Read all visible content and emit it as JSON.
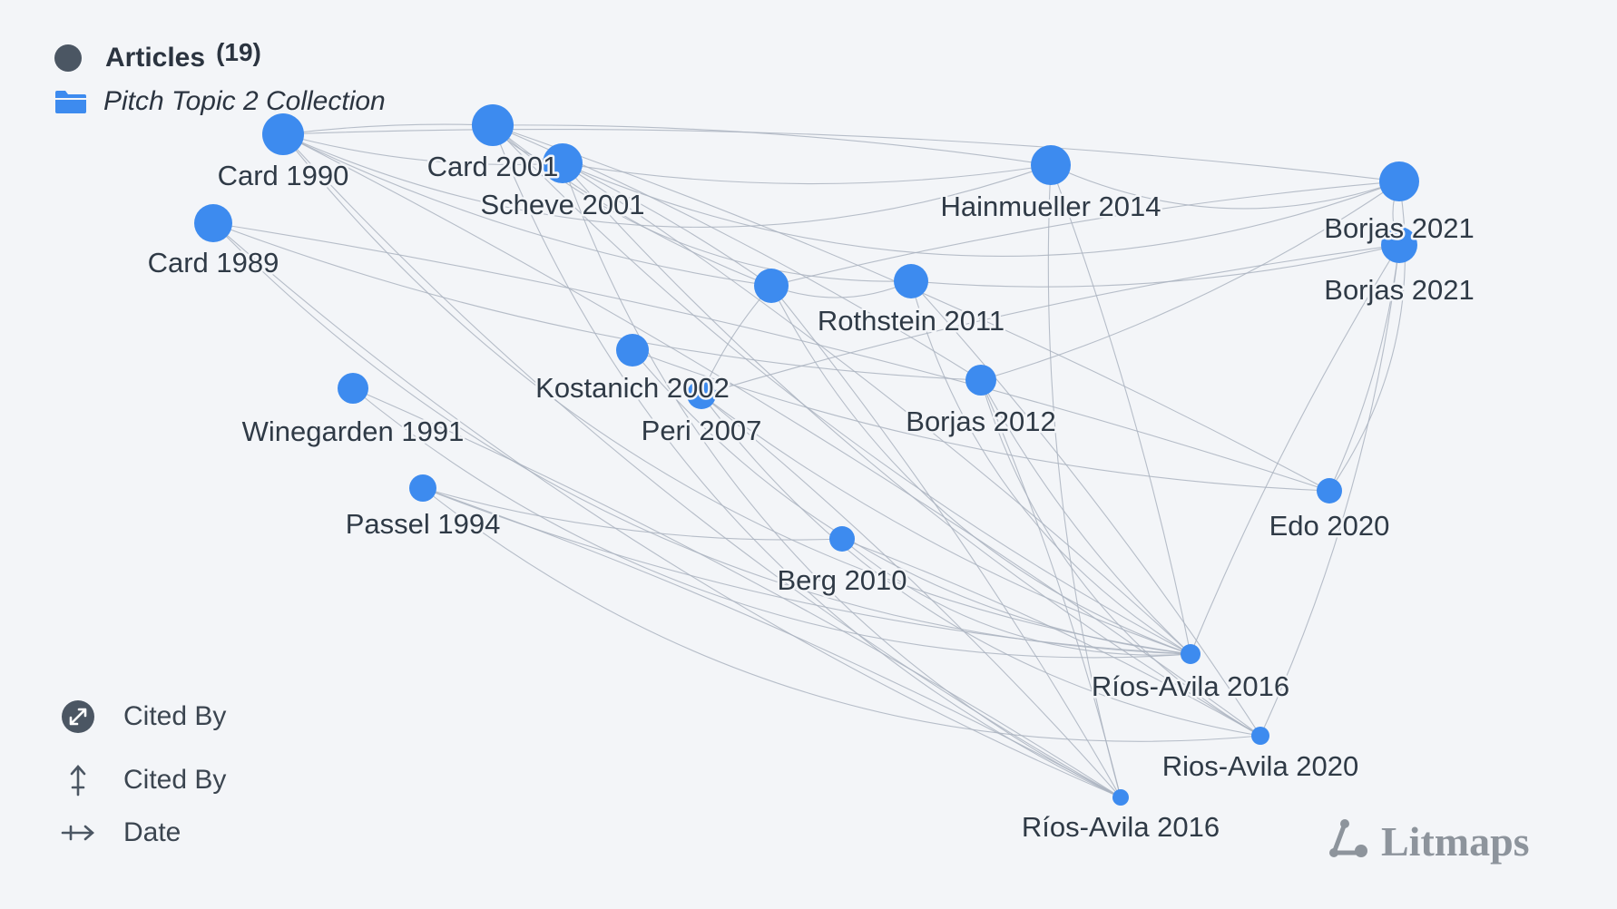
{
  "legend": {
    "articles_label": "Articles",
    "articles_count": "(19)",
    "collection_label": "Pitch Topic 2 Collection",
    "controls": [
      {
        "icon": "expand-arrows-icon",
        "label": "Cited By"
      },
      {
        "icon": "vertical-axis-icon",
        "label": "Cited By"
      },
      {
        "icon": "horizontal-axis-icon",
        "label": "Date"
      }
    ]
  },
  "brand": {
    "name": "Litmaps",
    "icon": "litmaps-logo-icon"
  },
  "colors": {
    "node": "#3d8bef",
    "edge": "#aab3c0",
    "background": "#f3f5f8",
    "text": "#2f3a46"
  },
  "nodes": [
    {
      "id": "card1990",
      "label": "Card 1990"
    },
    {
      "id": "card2001",
      "label": "Card 2001"
    },
    {
      "id": "scheve2001",
      "label": "Scheve 2001"
    },
    {
      "id": "card1989",
      "label": "Card 1989"
    },
    {
      "id": "hainmueller2014",
      "label": "Hainmueller 2014"
    },
    {
      "id": "borjas2021a",
      "label": "Borjas 2021"
    },
    {
      "id": "borjas2021b",
      "label": "Borjas 2021"
    },
    {
      "id": "unlabeled",
      "label": ""
    },
    {
      "id": "rothstein2011",
      "label": "Rothstein 2011"
    },
    {
      "id": "kostanich2002",
      "label": "Kostanich 2002"
    },
    {
      "id": "peri2007",
      "label": "Peri 2007"
    },
    {
      "id": "borjas2012",
      "label": "Borjas 2012"
    },
    {
      "id": "winegarden1991",
      "label": "Winegarden 1991"
    },
    {
      "id": "passel1994",
      "label": "Passel 1994"
    },
    {
      "id": "berg2010",
      "label": "Berg 2010"
    },
    {
      "id": "edo2020",
      "label": "Edo 2020"
    },
    {
      "id": "riosavila2016a",
      "label": "Ríos-Avila 2016"
    },
    {
      "id": "riosavila2020",
      "label": "Rios-Avila 2020"
    },
    {
      "id": "riosavila2016b",
      "label": "Ríos-Avila 2016"
    }
  ],
  "edges": [
    [
      "card1990",
      "card2001"
    ],
    [
      "card1990",
      "scheve2001"
    ],
    [
      "card1990",
      "hainmueller2014"
    ],
    [
      "card1990",
      "borjas2021a"
    ],
    [
      "card1990",
      "unlabeled"
    ],
    [
      "card1990",
      "riosavila2016a"
    ],
    [
      "card1990",
      "riosavila2020"
    ],
    [
      "card1990",
      "riosavila2016b"
    ],
    [
      "card2001",
      "scheve2001"
    ],
    [
      "card2001",
      "hainmueller2014"
    ],
    [
      "card2001",
      "unlabeled"
    ],
    [
      "card2001",
      "rothstein2011"
    ],
    [
      "card2001",
      "borjas2012"
    ],
    [
      "card2001",
      "riosavila2016a"
    ],
    [
      "card2001",
      "riosavila2016b"
    ],
    [
      "card2001",
      "edo2020"
    ],
    [
      "scheve2001",
      "hainmueller2014"
    ],
    [
      "scheve2001",
      "borjas2021a"
    ],
    [
      "scheve2001",
      "riosavila2016a"
    ],
    [
      "scheve2001",
      "riosavila2020"
    ],
    [
      "scheve2001",
      "riosavila2016b"
    ],
    [
      "scheve2001",
      "unlabeled"
    ],
    [
      "card1989",
      "borjas2012"
    ],
    [
      "card1989",
      "riosavila2016a"
    ],
    [
      "card1989",
      "edo2020"
    ],
    [
      "card1989",
      "riosavila2016b"
    ],
    [
      "hainmueller2014",
      "borjas2021a"
    ],
    [
      "hainmueller2014",
      "riosavila2016a"
    ],
    [
      "hainmueller2014",
      "riosavila2016b"
    ],
    [
      "unlabeled",
      "rothstein2011"
    ],
    [
      "unlabeled",
      "borjas2021a"
    ],
    [
      "unlabeled",
      "peri2007"
    ],
    [
      "unlabeled",
      "riosavila2016a"
    ],
    [
      "unlabeled",
      "riosavila2016b"
    ],
    [
      "rothstein2011",
      "borjas2021b"
    ],
    [
      "rothstein2011",
      "riosavila2016a"
    ],
    [
      "rothstein2011",
      "riosavila2020"
    ],
    [
      "kostanich2002",
      "edo2020"
    ],
    [
      "kostanich2002",
      "riosavila2016a"
    ],
    [
      "peri2007",
      "borjas2021b"
    ],
    [
      "peri2007",
      "riosavila2016a"
    ],
    [
      "peri2007",
      "riosavila2020"
    ],
    [
      "peri2007",
      "riosavila2016b"
    ],
    [
      "borjas2012",
      "riosavila2016a"
    ],
    [
      "borjas2012",
      "riosavila2020"
    ],
    [
      "borjas2012",
      "riosavila2016b"
    ],
    [
      "borjas2012",
      "borjas2021a"
    ],
    [
      "winegarden1991",
      "riosavila2016a"
    ],
    [
      "winegarden1991",
      "riosavila2016b"
    ],
    [
      "passel1994",
      "riosavila2016a"
    ],
    [
      "passel1994",
      "riosavila2020"
    ],
    [
      "passel1994",
      "riosavila2016b"
    ],
    [
      "passel1994",
      "berg2010"
    ],
    [
      "berg2010",
      "riosavila2016a"
    ],
    [
      "berg2010",
      "riosavila2020"
    ],
    [
      "edo2020",
      "borjas2021b"
    ],
    [
      "edo2020",
      "borjas2021a"
    ],
    [
      "riosavila2016a",
      "borjas2021b"
    ],
    [
      "riosavila2020",
      "borjas2021b"
    ],
    [
      "borjas2021a",
      "borjas2021b"
    ]
  ]
}
